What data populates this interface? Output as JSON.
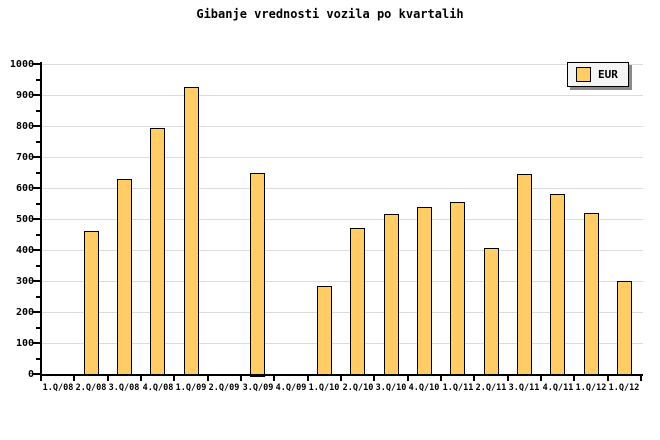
{
  "window": {
    "background": "#FFFFFF"
  },
  "chart_data": {
    "type": "bar",
    "title": "Gibanje vrednosti vozila po kvartalih",
    "xlabel": "",
    "ylabel": "",
    "categories": [
      "1.Q/08",
      "2.Q/08",
      "3.Q/08",
      "4.Q/08",
      "1.Q/09",
      "2.Q/09",
      "3.Q/09",
      "4.Q/09",
      "1.Q/10",
      "2.Q/10",
      "3.Q/10",
      "4.Q/10",
      "1.Q/11",
      "2.Q/11",
      "3.Q/11",
      "4.Q/11",
      "1.Q/12",
      "1.Q/12"
    ],
    "series": [
      {
        "name": "EUR",
        "color": "#FFCC66",
        "border_color": "#000000",
        "values": [
          null,
          460,
          630,
          795,
          925,
          null,
          650,
          null,
          285,
          470,
          515,
          540,
          555,
          405,
          645,
          580,
          520,
          300
        ]
      }
    ],
    "ylim": [
      0,
      1000
    ],
    "ytick_major_step": 100,
    "ytick_minor_step": 50,
    "ytick_labels": [
      "0",
      "100",
      "200",
      "300",
      "400",
      "500",
      "600",
      "700",
      "800",
      "900",
      "1000"
    ],
    "grid": "horizontal-major",
    "grid_color": "#DCDCDC",
    "axis_color": "#000000",
    "background_color": "#FFFFFF",
    "legend": {
      "position": "top-right",
      "entries": [
        {
          "label": "EUR",
          "swatch_color": "#FFCC66"
        }
      ]
    }
  }
}
